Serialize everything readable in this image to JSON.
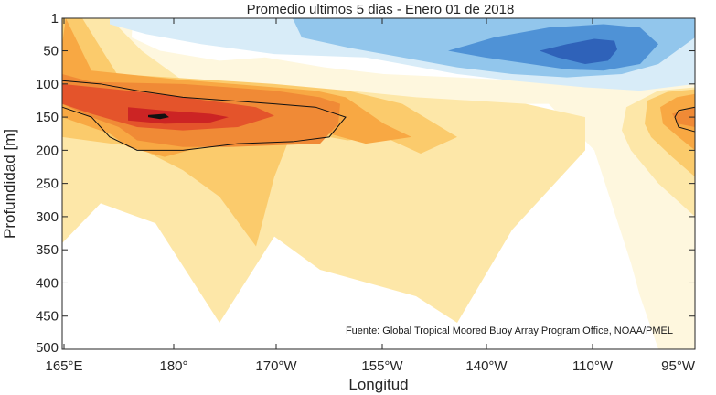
{
  "chart_data": {
    "type": "heatmap",
    "title": "Promedio ultimos 5 dias - Enero 01 de 2018",
    "xlabel": "Longitud",
    "ylabel": "Profundidad [m]",
    "x_tick_labels": [
      "165°E",
      "180°",
      "170°W",
      "155°W",
      "140°W",
      "110°W",
      "95°W"
    ],
    "y_tick_labels": [
      "1",
      "50",
      "100",
      "150",
      "200",
      "250",
      "300",
      "350",
      "400",
      "450",
      "500"
    ],
    "y_reversed": true,
    "annotation": "Fuente: Global Tropical Moored Buoy Array Program Office, NOAA/PMEL",
    "colors": {
      "neg_3": "#2f62b9",
      "neg_2": "#4f92d6",
      "neg_1": "#92c6ec",
      "neg_0": "#d8ecf8",
      "zero": "#ffffff",
      "pos_0": "#fef7de",
      "pos_1": "#fde7a8",
      "pos_2": "#fbcb6c",
      "pos_3": "#f8a843",
      "pos_4": "#f08a36",
      "pos_5": "#e4542b",
      "pos_6": "#cc2424",
      "pos_7": "#111111",
      "contour": "#111111"
    },
    "regions": [
      {
        "level": "pos_0",
        "x": [
          145,
          144,
          175,
          240,
          290,
          355,
          420,
          500,
          640,
          760,
          760,
          720,
          700,
          690,
          650,
          600,
          300,
          200,
          140,
          90,
          68,
          68
        ],
        "y": [
          1,
          30,
          50,
          65,
          60,
          75,
          85,
          90,
          100,
          110,
          500,
          500,
          420,
          370,
          200,
          130,
          130,
          120,
          95,
          15,
          180,
          1
        ]
      },
      {
        "level": "pos_1",
        "x": [
          68,
          120,
          155,
          205,
          300,
          380,
          455,
          575,
          640,
          640,
          560,
          500,
          455,
          350,
          300,
          240,
          170,
          110,
          68
        ],
        "y": [
          1,
          1,
          50,
          100,
          105,
          110,
          120,
          130,
          150,
          200,
          320,
          460,
          420,
          380,
          330,
          460,
          310,
          280,
          340
        ]
      },
      {
        "level": "pos_2",
        "x": [
          68,
          90,
          112,
          128,
          300,
          380,
          440,
          500,
          460,
          420,
          380,
          320,
          300,
          280,
          240,
          200,
          150,
          68
        ],
        "y": [
          1,
          1,
          50,
          85,
          100,
          110,
          130,
          180,
          205,
          180,
          185,
          170,
          240,
          345,
          270,
          230,
          195,
          180
        ]
      },
      {
        "level": "pos_3",
        "x": [
          68,
          72,
          100,
          200,
          345,
          378,
          420,
          450,
          400,
          360,
          260,
          180,
          140,
          120,
          68
        ],
        "y": [
          40,
          1,
          80,
          94,
          110,
          120,
          160,
          180,
          190,
          175,
          180,
          210,
          195,
          175,
          150
        ]
      },
      {
        "level": "pos_4",
        "x": [
          68,
          100,
          200,
          300,
          350,
          372,
          370,
          350,
          250,
          200,
          150,
          130,
          100,
          68
        ],
        "y": [
          85,
          97,
          100,
          110,
          120,
          130,
          160,
          190,
          195,
          195,
          185,
          165,
          150,
          130
        ]
      },
      {
        "level": "pos_5",
        "x": [
          68,
          140,
          200,
          280,
          300,
          260,
          200,
          150,
          100,
          68
        ],
        "y": [
          100,
          110,
          120,
          135,
          148,
          165,
          170,
          165,
          145,
          130
        ]
      },
      {
        "level": "pos_6",
        "x": [
          140,
          180,
          230,
          250,
          230,
          180,
          140
        ],
        "y": [
          135,
          140,
          145,
          150,
          158,
          160,
          155
        ]
      },
      {
        "level": "pos_7",
        "x": [
          162,
          180,
          185,
          175,
          162
        ],
        "y": [
          147,
          145,
          150,
          153,
          150
        ]
      },
      {
        "level": "pos_0",
        "x": [
          650,
          700,
          760,
          760,
          700,
          660,
          650
        ],
        "y": [
          140,
          105,
          100,
          500,
          420,
          200,
          170
        ]
      },
      {
        "level": "pos_1",
        "x": [
          685,
          720,
          760,
          760,
          720,
          690,
          680
        ],
        "y": [
          135,
          110,
          105,
          300,
          250,
          200,
          170
        ]
      },
      {
        "level": "pos_2",
        "x": [
          708,
          730,
          760,
          760,
          735,
          712,
          705
        ],
        "y": [
          125,
          112,
          108,
          240,
          210,
          180,
          160
        ]
      },
      {
        "level": "pos_3",
        "x": [
          722,
          740,
          760,
          760,
          742,
          725
        ],
        "y": [
          135,
          120,
          115,
          200,
          180,
          160
        ]
      },
      {
        "level": "pos_4",
        "x": [
          735,
          760,
          760,
          742
        ],
        "y": [
          145,
          135,
          165,
          160
        ]
      },
      {
        "level": "neg_0",
        "x": [
          120,
          200,
          300,
          450,
          550,
          640,
          700,
          760,
          760,
          700,
          640,
          560,
          500,
          440,
          400,
          300,
          220,
          160,
          120
        ],
        "y": [
          1,
          1,
          1,
          1,
          1,
          1,
          1,
          1,
          100,
          110,
          105,
          95,
          85,
          70,
          60,
          55,
          40,
          25,
          10
        ]
      },
      {
        "level": "neg_1",
        "x": [
          320,
          420,
          520,
          600,
          680,
          740,
          760,
          760,
          720,
          680,
          620,
          560,
          500,
          440,
          380,
          330
        ],
        "y": [
          1,
          1,
          1,
          1,
          1,
          1,
          1,
          30,
          70,
          85,
          90,
          85,
          75,
          60,
          45,
          30
        ]
      },
      {
        "level": "neg_2",
        "x": [
          490,
          540,
          600,
          660,
          700,
          720,
          700,
          660,
          620,
          580,
          530
        ],
        "y": [
          50,
          30,
          15,
          10,
          15,
          40,
          70,
          80,
          78,
          70,
          60
        ]
      },
      {
        "level": "neg_3",
        "x": [
          590,
          620,
          650,
          672,
          675,
          665,
          640,
          610
        ],
        "y": [
          50,
          40,
          32,
          35,
          48,
          65,
          70,
          60
        ]
      }
    ],
    "contours": [
      {
        "x": [
          68,
          110,
          150,
          200,
          250,
          300,
          345,
          378,
          360,
          320,
          260,
          200,
          150,
          120,
          100,
          68
        ],
        "y": [
          95,
          100,
          110,
          120,
          125,
          130,
          135,
          150,
          180,
          187,
          190,
          200,
          200,
          180,
          150,
          135
        ]
      },
      {
        "x": [
          760,
          742,
          738,
          742,
          760
        ],
        "y": [
          135,
          140,
          150,
          165,
          172
        ]
      }
    ]
  }
}
